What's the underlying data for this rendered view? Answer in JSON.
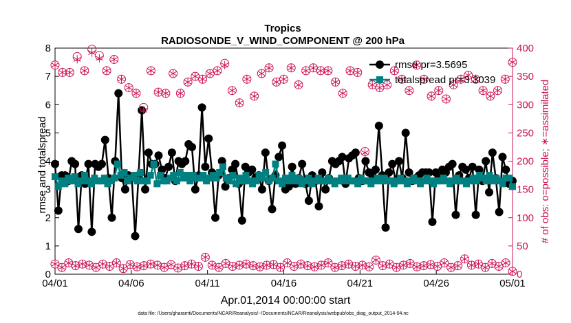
{
  "chart_data": {
    "type": "line",
    "title": "Tropics",
    "subtitle": "RADIOSONDE_V_WIND_COMPONENT @ 200 hPa",
    "xlabel": "Apr.01,2014 00:00:00 start",
    "ylabel": "rmse and totalspread",
    "ylabel_right": "# of obs: o=possible; ∗=assimilated",
    "footnote": "data file: /Users/gharamti/Documents/NCAR/Reanalysis/~/Documents/NCAR/Reanalysis/webpub/obs_diag_output_2014-04.nc",
    "x_ticks": [
      "04/01",
      "04/06",
      "04/11",
      "04/16",
      "04/21",
      "04/26",
      "05/01"
    ],
    "x_tick_days": [
      0,
      5,
      10,
      15,
      20,
      25,
      30
    ],
    "xlim": [
      0,
      30
    ],
    "ylim": [
      0,
      8
    ],
    "ylim_right": [
      0,
      400
    ],
    "y_ticks": [
      0,
      1,
      2,
      3,
      4,
      5,
      6,
      7,
      8
    ],
    "y_ticks_right": [
      0,
      50,
      100,
      150,
      200,
      250,
      300,
      350,
      400
    ],
    "colors": {
      "rmse": "#000000",
      "spread": "#008080",
      "obs": "#cc1155",
      "axis": "#000000"
    },
    "series": [
      {
        "name": "rmse pr=3.5695",
        "axis": "left",
        "values": [
          3.9,
          2.25,
          3.5,
          3.5,
          3.3,
          4.0,
          3.9,
          1.6,
          3.5,
          3.2,
          3.9,
          1.5,
          3.9,
          3.8,
          3.9,
          4.75,
          3.4,
          2.0,
          4.0,
          6.4,
          3.4,
          3.0,
          3.5,
          3.4,
          1.35,
          3.5,
          5.8,
          3.0,
          4.3,
          3.9,
          3.9,
          4.2,
          3.7,
          3.4,
          3.8,
          4.3,
          3.3,
          4.0,
          3.9,
          4.0,
          4.6,
          4.5,
          3.0,
          3.5,
          5.9,
          3.8,
          4.8,
          3.6,
          2.0,
          3.5,
          4.0,
          3.1,
          3.4,
          3.7,
          3.9,
          3.2,
          1.9,
          3.8,
          3.6,
          3.7,
          3.4,
          3.5,
          3.0,
          4.3,
          3.3,
          2.3,
          3.5,
          4.15,
          4.55,
          3.0,
          3.1,
          3.8,
          3.2,
          3.4,
          3.9,
          3.2,
          2.6,
          3.5,
          3.3,
          2.4,
          3.6,
          3.0,
          3.4,
          4.0,
          3.9,
          4.0,
          4.15,
          3.2,
          4.1,
          4.2,
          4.3,
          3.4,
          3.3,
          4.0,
          3.6,
          3.5,
          3.7,
          5.25,
          3.5,
          1.65,
          3.6,
          3.9,
          3.3,
          4.0,
          3.4,
          5.0,
          3.6,
          3.3,
          3.4,
          3.5,
          3.6,
          3.6,
          3.6,
          1.85,
          3.6,
          3.5,
          3.7,
          3.6,
          3.8,
          3.9,
          2.1,
          3.5,
          3.8,
          3.7,
          3.4,
          3.8,
          2.1,
          3.7,
          3.3,
          4.0,
          2.9,
          4.3,
          3.4,
          2.2,
          4.15,
          3.7,
          3.2,
          3.3
        ]
      },
      {
        "name": "totalspread pr=3.3039",
        "axis": "left",
        "values": [
          3.45,
          3.1,
          3.3,
          3.2,
          3.4,
          3.3,
          3.45,
          3.2,
          3.3,
          3.5,
          3.3,
          3.2,
          3.4,
          3.3,
          3.3,
          3.4,
          3.2,
          3.3,
          3.4,
          3.9,
          3.5,
          3.6,
          3.3,
          3.4,
          3.5,
          3.3,
          3.6,
          3.3,
          3.3,
          3.5,
          3.9,
          3.2,
          3.5,
          3.3,
          3.3,
          3.4,
          3.5,
          3.3,
          3.6,
          3.4,
          3.5,
          3.3,
          3.5,
          3.4,
          3.4,
          3.5,
          3.3,
          3.4,
          3.5,
          3.4,
          3.6,
          3.8,
          3.4,
          3.3,
          3.5,
          3.2,
          3.4,
          3.3,
          3.5,
          3.3,
          3.2,
          3.3,
          3.5,
          3.4,
          3.6,
          3.3,
          3.4,
          3.9,
          3.3,
          3.2,
          3.4,
          3.3,
          3.5,
          3.3,
          3.4,
          3.2,
          3.3,
          3.4,
          3.2,
          3.3,
          3.4,
          3.3,
          3.3,
          3.4,
          3.3,
          3.2,
          3.3,
          3.4,
          3.3,
          3.4,
          3.3,
          3.3,
          3.2,
          3.4,
          3.3,
          3.3,
          3.2,
          3.3,
          3.4,
          3.3,
          3.4,
          3.3,
          3.3,
          3.2,
          3.3,
          3.4,
          3.3,
          3.2,
          3.3,
          3.4,
          3.3,
          3.2,
          3.3,
          3.4,
          3.3,
          3.2,
          3.3,
          3.3,
          3.4,
          3.3,
          3.2,
          3.3,
          3.4,
          3.3,
          3.3,
          3.2,
          3.3,
          3.4,
          3.3,
          3.5,
          3.4,
          3.3,
          3.5,
          3.3,
          3.4,
          3.3,
          3.2,
          3.4,
          3.4,
          3.1
        ]
      },
      {
        "name": "obs possible (upper)",
        "axis": "right",
        "marker": "circle",
        "values": [
          370,
          357,
          357,
          385,
          360,
          398,
          387,
          360,
          380,
          345,
          330,
          320,
          295,
          360,
          322,
          320,
          355,
          320,
          340,
          350,
          345,
          355,
          360,
          373,
          325,
          303,
          345,
          315,
          355,
          365,
          340,
          345,
          365,
          335,
          360,
          365,
          360,
          360,
          340,
          320,
          360,
          357,
          217,
          335,
          330,
          335,
          360,
          345,
          325,
          370,
          345,
          315,
          325,
          310,
          335,
          345,
          352,
          345,
          325,
          315,
          325,
          345,
          375
        ]
      },
      {
        "name": "obs assimilated (upper)",
        "axis": "right",
        "marker": "star",
        "values": [
          370,
          357,
          357,
          380,
          360,
          392,
          382,
          360,
          380,
          345,
          330,
          320,
          290,
          360,
          322,
          320,
          355,
          320,
          340,
          350,
          345,
          355,
          360,
          370,
          325,
          303,
          345,
          315,
          355,
          365,
          340,
          345,
          365,
          335,
          360,
          365,
          360,
          360,
          340,
          320,
          360,
          357,
          215,
          335,
          330,
          335,
          360,
          345,
          325,
          370,
          345,
          315,
          325,
          310,
          335,
          345,
          352,
          345,
          325,
          315,
          325,
          345,
          375
        ]
      },
      {
        "name": "obs possible (lower)",
        "axis": "right",
        "marker": "circle",
        "values": [
          18,
          12,
          20,
          15,
          18,
          16,
          12,
          18,
          14,
          20,
          10,
          17,
          13,
          15,
          18,
          16,
          12,
          17,
          11,
          15,
          18,
          14,
          30,
          16,
          12,
          19,
          14,
          16,
          18,
          15,
          13,
          16,
          17,
          12,
          20,
          14,
          18,
          15,
          13,
          16,
          20,
          12,
          15,
          18,
          14,
          16,
          13,
          25,
          15,
          18,
          12,
          16,
          19,
          13,
          15,
          17,
          14,
          20,
          12,
          15,
          27,
          16,
          18,
          12,
          19,
          14,
          20,
          5
        ]
      },
      {
        "name": "obs assimilated (lower)",
        "axis": "right",
        "marker": "star",
        "values": [
          18,
          12,
          20,
          15,
          18,
          16,
          12,
          18,
          14,
          20,
          10,
          17,
          13,
          15,
          18,
          16,
          12,
          17,
          11,
          15,
          18,
          14,
          30,
          16,
          12,
          19,
          14,
          16,
          18,
          15,
          13,
          16,
          17,
          12,
          20,
          14,
          18,
          15,
          13,
          16,
          20,
          12,
          15,
          18,
          14,
          16,
          13,
          25,
          15,
          18,
          12,
          16,
          19,
          13,
          15,
          17,
          14,
          20,
          12,
          15,
          27,
          16,
          18,
          12,
          19,
          14,
          20,
          5
        ]
      }
    ],
    "legend": [
      "rmse pr=3.5695",
      "totalspread pr=3.3039"
    ],
    "legend_position": "top-right"
  }
}
